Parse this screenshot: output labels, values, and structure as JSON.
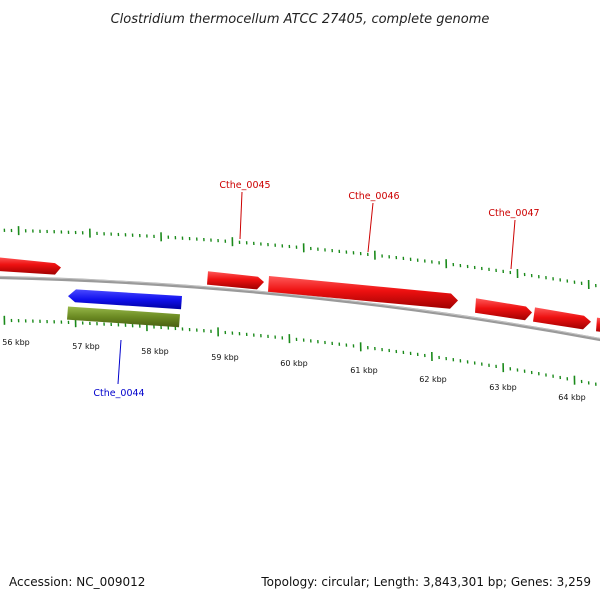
{
  "title": "Clostridium thermocellum ATCC 27405, complete genome",
  "footer": {
    "accession": "Accession: NC_009012",
    "summary": "Topology: circular; Length: 3,843,301 bp; Genes: 3,259"
  },
  "axis_labels": [
    "56 kbp",
    "57 kbp",
    "58 kbp",
    "59 kbp",
    "60 kbp",
    "61 kbp",
    "62 kbp",
    "63 kbp",
    "64 kbp"
  ],
  "gene_labels": {
    "g44": "Cthe_0044",
    "g45": "Cthe_0045",
    "g46": "Cthe_0046",
    "g47": "Cthe_0047"
  },
  "colors": {
    "forward_gene": "#ee1111",
    "reverse_gene": "#1111ee",
    "reverse_feature": "#6b8a22",
    "backbone": "#888888",
    "ticks": "#1a8a1a",
    "label_forward": "#cc0000",
    "label_reverse": "#0000cc"
  }
}
